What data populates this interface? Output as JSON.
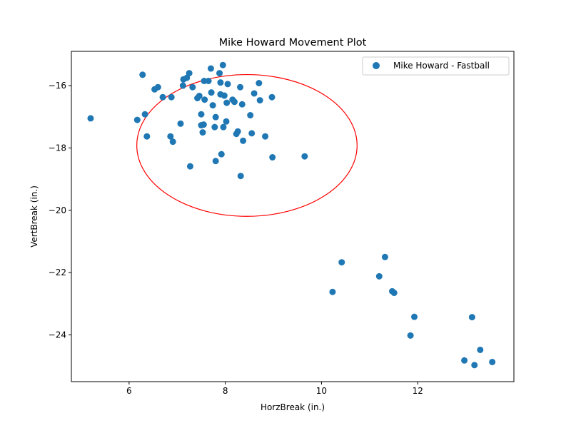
{
  "chart_data": {
    "type": "scatter",
    "title": "Mike Howard Movement Plot",
    "xlabel": "HorzBreak (in.)",
    "ylabel": "VertBreak (in.)",
    "xlim": [
      4.8,
      14.0
    ],
    "ylim": [
      -25.5,
      -14.9
    ],
    "xticks": [
      6,
      8,
      10,
      12
    ],
    "yticks": [
      -16,
      -18,
      -20,
      -22,
      -24
    ],
    "grid": false,
    "legend_position": "top-right",
    "series": [
      {
        "name": "Mike Howard - Fastball",
        "color": "#1f77b4",
        "points": [
          [
            5.2,
            -17.05
          ],
          [
            6.17,
            -17.1
          ],
          [
            6.28,
            -15.65
          ],
          [
            6.33,
            -16.92
          ],
          [
            6.37,
            -17.63
          ],
          [
            6.53,
            -16.12
          ],
          [
            6.6,
            -16.05
          ],
          [
            6.7,
            -16.37
          ],
          [
            6.86,
            -17.63
          ],
          [
            6.88,
            -16.37
          ],
          [
            6.91,
            -17.8
          ],
          [
            7.07,
            -17.22
          ],
          [
            7.12,
            -16.0
          ],
          [
            7.13,
            -15.8
          ],
          [
            7.2,
            -15.75
          ],
          [
            7.25,
            -15.6
          ],
          [
            7.27,
            -18.59
          ],
          [
            7.32,
            -16.05
          ],
          [
            7.42,
            -16.4
          ],
          [
            7.46,
            -16.33
          ],
          [
            7.5,
            -17.27
          ],
          [
            7.5,
            -16.92
          ],
          [
            7.53,
            -17.5
          ],
          [
            7.55,
            -17.25
          ],
          [
            7.56,
            -15.85
          ],
          [
            7.57,
            -16.45
          ],
          [
            7.65,
            -15.85
          ],
          [
            7.7,
            -15.45
          ],
          [
            7.71,
            -16.22
          ],
          [
            7.74,
            -16.63
          ],
          [
            7.78,
            -17.33
          ],
          [
            7.8,
            -17.01
          ],
          [
            7.8,
            -18.42
          ],
          [
            7.88,
            -15.6
          ],
          [
            7.9,
            -15.9
          ],
          [
            7.9,
            -16.28
          ],
          [
            7.92,
            -18.2
          ],
          [
            7.95,
            -15.34
          ],
          [
            7.96,
            -17.33
          ],
          [
            7.98,
            -16.32
          ],
          [
            8.02,
            -17.15
          ],
          [
            8.03,
            -16.55
          ],
          [
            8.05,
            -15.95
          ],
          [
            8.15,
            -16.45
          ],
          [
            8.19,
            -16.52
          ],
          [
            8.23,
            -17.55
          ],
          [
            8.26,
            -17.47
          ],
          [
            8.31,
            -16.05
          ],
          [
            8.32,
            -18.9
          ],
          [
            8.35,
            -16.6
          ],
          [
            8.37,
            -17.77
          ],
          [
            8.52,
            -16.95
          ],
          [
            8.55,
            -17.53
          ],
          [
            8.6,
            -16.25
          ],
          [
            8.7,
            -15.92
          ],
          [
            8.72,
            -16.47
          ],
          [
            8.83,
            -17.63
          ],
          [
            8.97,
            -16.37
          ],
          [
            8.98,
            -18.3
          ],
          [
            9.65,
            -18.27
          ],
          [
            10.23,
            -22.62
          ],
          [
            10.42,
            -21.67
          ],
          [
            11.2,
            -22.12
          ],
          [
            11.32,
            -21.5
          ],
          [
            11.47,
            -22.6
          ],
          [
            11.51,
            -22.65
          ],
          [
            11.85,
            -24.02
          ],
          [
            11.93,
            -23.42
          ],
          [
            12.97,
            -24.82
          ],
          [
            13.13,
            -23.43
          ],
          [
            13.18,
            -24.97
          ],
          [
            13.3,
            -24.48
          ],
          [
            13.55,
            -24.87
          ]
        ]
      }
    ],
    "ellipse": {
      "color": "#ff0000",
      "center": [
        8.45,
        -17.92
      ],
      "width": 4.58,
      "height": 4.55
    }
  }
}
